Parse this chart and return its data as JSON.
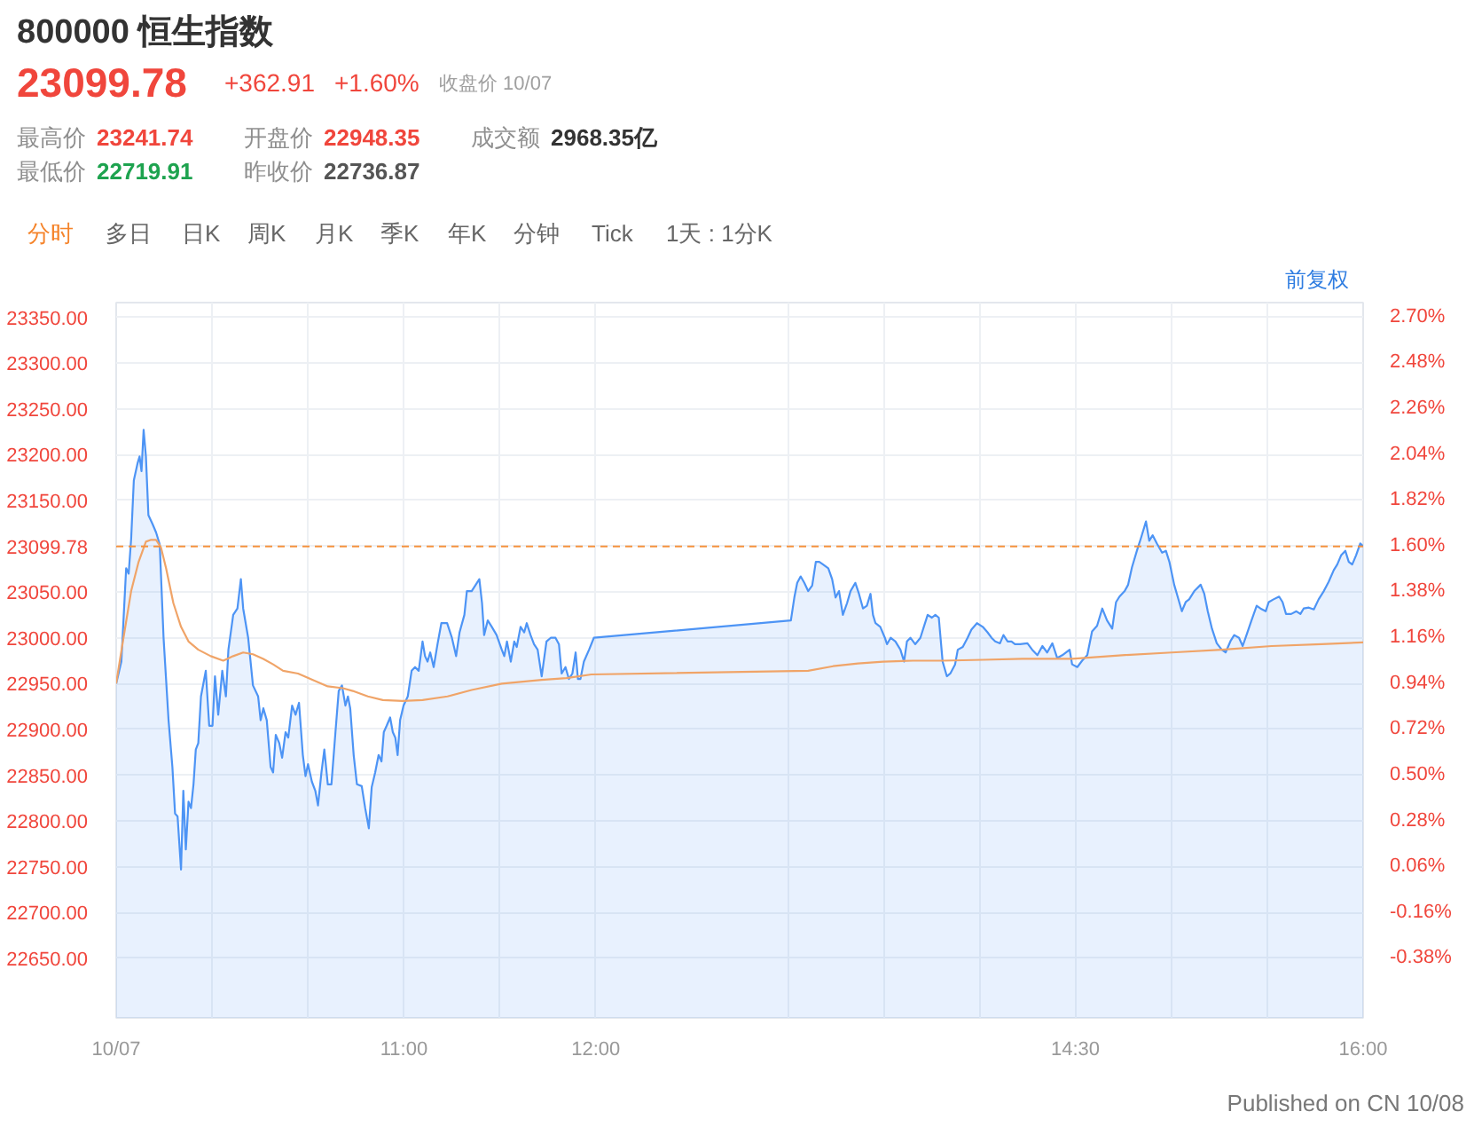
{
  "chart_data": {
    "type": "area",
    "title": "800000 恒生指数",
    "annotations": [
      "23099.78",
      "+362.91",
      "+1.60%",
      "收盘价 10/07",
      "最高价",
      "23241.74",
      "开盘价",
      "22948.35",
      "成交额",
      "2968.35亿",
      "最低价",
      "22719.91",
      "昨收价",
      "22736.87",
      "分时",
      "多日",
      "日K",
      "周K",
      "月K",
      "季K",
      "年K",
      "分钟",
      "Tick",
      "1天 : 1分K",
      "前复权",
      "Published on CN 10/08"
    ],
    "xlim": [
      9.5,
      16
    ],
    "xticks": [
      {
        "value": 9.5,
        "label": "10/07"
      },
      {
        "value": 10,
        "label": null
      },
      {
        "value": 10.5,
        "label": null
      },
      {
        "value": 11,
        "label": "11:00"
      },
      {
        "value": 11.5,
        "label": null
      },
      {
        "value": 12,
        "label": "12:00"
      },
      {
        "value": 13,
        "label": null
      },
      {
        "value": 13.5,
        "label": null
      },
      {
        "value": 14,
        "label": null
      },
      {
        "value": 14.5,
        "label": "14:30"
      },
      {
        "value": 15,
        "label": null
      },
      {
        "value": 15.5,
        "label": null
      },
      {
        "value": 16,
        "label": "16:00"
      }
    ],
    "ylim": [
      22585,
      23366
    ],
    "yticks": [
      {
        "value": 22650,
        "label": "22650.00"
      },
      {
        "value": 22700,
        "label": "22700.00"
      },
      {
        "value": 22750,
        "label": "22750.00"
      },
      {
        "value": 22800,
        "label": "22800.00"
      },
      {
        "value": 22850,
        "label": "22850.00"
      },
      {
        "value": 22900,
        "label": "22900.00"
      },
      {
        "value": 22950,
        "label": "22950.00"
      },
      {
        "value": 23000,
        "label": "23000.00"
      },
      {
        "value": 23050,
        "label": "23050.00"
      },
      23099.78,
      {
        "value": 23150,
        "label": "23150.00"
      },
      {
        "value": 23200,
        "label": "23200.00"
      },
      {
        "value": 23250,
        "label": "23250.00"
      },
      {
        "value": 23300,
        "label": "23300.00"
      },
      {
        "value": 23350,
        "label": "23350.00"
      }
    ],
    "y2lim": [
      -0.668,
      2.767
    ],
    "y2ticks": [
      {
        "value": -0.38,
        "label": "-0.38%"
      },
      {
        "value": -0.16,
        "label": "-0.16%"
      },
      {
        "value": 0.06,
        "label": "0.06%"
      },
      {
        "value": 0.28,
        "label": "0.28%"
      },
      {
        "value": 0.5,
        "label": "0.50%"
      },
      {
        "value": 0.72,
        "label": "0.72%"
      },
      {
        "value": 0.94,
        "label": "0.94%"
      },
      {
        "value": 1.16,
        "label": "1.16%"
      },
      {
        "value": 1.38,
        "label": "1.38%"
      },
      {
        "value": 1.6,
        "label": "1.60%"
      },
      {
        "value": 1.82,
        "label": "1.82%"
      },
      {
        "value": 2.04,
        "label": "2.04%"
      },
      {
        "value": 2.26,
        "label": "2.26%"
      },
      {
        "value": 2.48,
        "label": "2.48%"
      },
      {
        "value": 2.7,
        "label": "2.70%"
      }
    ],
    "grid": true,
    "ref_lines": [
      {
        "axis": "y",
        "value": 23099.78,
        "color": "#f5923e",
        "line_style": "dashed"
      }
    ],
    "series": [
      {
        "color": "#4d94f5",
        "x": [
          9.5,
          9.527,
          9.552,
          9.565,
          9.578,
          9.592,
          9.612,
          9.622,
          9.632,
          9.643,
          9.655,
          9.668,
          9.69,
          9.708,
          9.727,
          9.747,
          9.773,
          9.793,
          9.807,
          9.82,
          9.838,
          9.85,
          9.863,
          9.877,
          9.89,
          9.903,
          9.915,
          9.928,
          9.942,
          9.967,
          9.985,
          10.002,
          10.015,
          10.032,
          10.053,
          10.072,
          10.085,
          10.11,
          10.132,
          10.15,
          10.162,
          10.188,
          10.213,
          10.24,
          10.253,
          10.267,
          10.285,
          10.305,
          10.318,
          10.332,
          10.35,
          10.365,
          10.383,
          10.397,
          10.417,
          10.435,
          10.453,
          10.473,
          10.487,
          10.5,
          10.52,
          10.538,
          10.552,
          10.57,
          10.585,
          10.603,
          10.622,
          10.643,
          10.66,
          10.677,
          10.695,
          10.708,
          10.72,
          10.738,
          10.755,
          10.78,
          10.798,
          10.817,
          10.832,
          10.85,
          10.868,
          10.883,
          10.895,
          10.91,
          10.928,
          10.942,
          10.955,
          10.967,
          10.98,
          10.998,
          11.02,
          11.04,
          11.058,
          11.077,
          11.097,
          11.11,
          11.123,
          11.137,
          11.155,
          11.175,
          11.195,
          11.225,
          11.25,
          11.272,
          11.29,
          11.315,
          11.328,
          11.353,
          11.393,
          11.407,
          11.418,
          11.437,
          11.458,
          11.483,
          11.51,
          11.523,
          11.537,
          11.557,
          11.575,
          11.588,
          11.608,
          11.627,
          11.64,
          11.66,
          11.678,
          11.697,
          11.718,
          11.743,
          11.765,
          11.79,
          11.808,
          11.822,
          11.842,
          11.86,
          11.878,
          11.895,
          11.907,
          11.92,
          11.938,
          11.965,
          11.99,
          13.017,
          13.035,
          13.05,
          13.068,
          13.087,
          13.107,
          13.128,
          13.147,
          13.165,
          13.185,
          13.212,
          13.232,
          13.25,
          13.268,
          13.288,
          13.31,
          13.328,
          13.353,
          13.372,
          13.393,
          13.413,
          13.432,
          13.445,
          13.458,
          13.483,
          13.507,
          13.518,
          13.537,
          13.562,
          13.588,
          13.607,
          13.622,
          13.64,
          13.665,
          13.692,
          13.71,
          13.73,
          13.752,
          13.77,
          13.788,
          13.808,
          13.83,
          13.848,
          13.873,
          13.887,
          13.913,
          13.938,
          13.958,
          13.987,
          14.017,
          14.042,
          14.063,
          14.082,
          14.107,
          14.125,
          14.147,
          14.167,
          14.185,
          14.212,
          14.25,
          14.275,
          14.302,
          14.328,
          14.353,
          14.38,
          14.405,
          14.432,
          14.47,
          14.483,
          14.51,
          14.535,
          14.562,
          14.587,
          14.613,
          14.64,
          14.665,
          14.692,
          14.712,
          14.73,
          14.757,
          14.775,
          14.795,
          14.822,
          14.842,
          14.868,
          14.885,
          14.903,
          14.925,
          14.952,
          14.972,
          14.99,
          15.015,
          15.033,
          15.055,
          15.075,
          15.093,
          15.12,
          15.153,
          15.172,
          15.19,
          15.212,
          15.237,
          15.263,
          15.283,
          15.31,
          15.328,
          15.353,
          15.372,
          15.392,
          15.418,
          15.445,
          15.465,
          15.492,
          15.508,
          15.533,
          15.562,
          15.58,
          15.598,
          15.625,
          15.652,
          15.673,
          15.69,
          15.717,
          15.743,
          15.768,
          15.795,
          15.82,
          15.847,
          15.865,
          15.885,
          15.907,
          15.925,
          15.943,
          15.963,
          15.985,
          16
        ],
        "values": [
          22950,
          22974,
          23076,
          23070,
          23108,
          23172,
          23191,
          23198,
          23182,
          23227,
          23198,
          23134,
          23124,
          23115,
          23102,
          23000,
          22910,
          22859,
          22808,
          22805,
          22747,
          22833,
          22769,
          22821,
          22814,
          22840,
          22878,
          22885,
          22936,
          22964,
          22904,
          22904,
          22958,
          22916,
          22964,
          22936,
          22987,
          23025,
          23032,
          23064,
          23032,
          23000,
          22948,
          22936,
          22910,
          22923,
          22910,
          22859,
          22853,
          22894,
          22885,
          22869,
          22897,
          22891,
          22926,
          22916,
          22929,
          22872,
          22849,
          22862,
          22843,
          22833,
          22817,
          22853,
          22878,
          22840,
          22840,
          22897,
          22942,
          22948,
          22926,
          22936,
          22923,
          22872,
          22840,
          22838,
          22814,
          22792,
          22837,
          22853,
          22872,
          22865,
          22897,
          22904,
          22913,
          22897,
          22891,
          22872,
          22910,
          22926,
          22936,
          22964,
          22968,
          22964,
          22996,
          22980,
          22974,
          22984,
          22968,
          22993,
          23016,
          23016,
          23000,
          22980,
          23006,
          23025,
          23051,
          23051,
          23064,
          23038,
          23003,
          23019,
          23012,
          23003,
          22987,
          22980,
          22996,
          22974,
          22996,
          22990,
          23012,
          23006,
          23016,
          23003,
          22993,
          22987,
          22958,
          22996,
          23000,
          23000,
          22993,
          22961,
          22968,
          22955,
          22961,
          22984,
          22955,
          22955,
          22974,
          22987,
          23000,
          23019,
          23044,
          23060,
          23067,
          23060,
          23051,
          23057,
          23083,
          23083,
          23080,
          23076,
          23064,
          23044,
          23051,
          23025,
          23038,
          23051,
          23060,
          23048,
          23032,
          23035,
          23048,
          23025,
          23016,
          23012,
          23000,
          22993,
          23000,
          22996,
          22987,
          22974,
          22996,
          23000,
          22993,
          23000,
          23012,
          23025,
          23022,
          23025,
          23022,
          22974,
          22958,
          22961,
          22971,
          22987,
          22990,
          23000,
          23009,
          23016,
          23012,
          23006,
          23000,
          22996,
          22994,
          23003,
          22996,
          22996,
          22993,
          22993,
          22994,
          22987,
          22981,
          22991,
          22984,
          22994,
          22978,
          22981,
          22987,
          22971,
          22968,
          22975,
          22981,
          23007,
          23013,
          23032,
          23019,
          23010,
          23039,
          23045,
          23051,
          23058,
          23077,
          23096,
          23109,
          23127,
          23106,
          23112,
          23103,
          23093,
          23095,
          23083,
          23058,
          23045,
          23029,
          23039,
          23042,
          23051,
          23058,
          23048,
          23029,
          23010,
          22994,
          22987,
          22984,
          22997,
          23003,
          23000,
          22991,
          23003,
          23019,
          23035,
          23032,
          23029,
          23039,
          23042,
          23045,
          23039,
          23026,
          23026,
          23029,
          23026,
          23032,
          23033,
          23031,
          23042,
          23051,
          23061,
          23074,
          23080,
          23090,
          23095,
          23083,
          23080,
          23090,
          23103,
          23100
        ]
      },
      {
        "type": "line",
        "color": "#f0a468",
        "x": [
          9.5,
          9.538,
          9.578,
          9.617,
          9.655,
          9.682,
          9.708,
          9.733,
          9.76,
          9.798,
          9.838,
          9.877,
          9.928,
          9.993,
          10.058,
          10.11,
          10.162,
          10.213,
          10.267,
          10.318,
          10.37,
          10.448,
          10.525,
          10.603,
          10.682,
          10.733,
          10.812,
          10.89,
          10.993,
          11.097,
          11.227,
          11.353,
          11.51,
          11.718,
          11.847,
          11.977,
          13.107,
          13.237,
          13.367,
          13.497,
          13.653,
          13.808,
          14.017,
          14.223,
          14.483,
          14.743,
          15.003,
          15.263,
          15.523,
          15.783,
          16
        ],
        "values": [
          22950,
          23000,
          23051,
          23083,
          23105,
          23107,
          23107,
          23099,
          23076,
          23038,
          23012,
          22996,
          22987,
          22980,
          22975,
          22980,
          22984,
          22982,
          22977,
          22971,
          22964,
          22961,
          22954,
          22947,
          22945,
          22942,
          22936,
          22932,
          22931,
          22932,
          22936,
          22943,
          22950,
          22954,
          22956,
          22960,
          22964,
          22969,
          22972,
          22974,
          22975,
          22975,
          22976,
          22977,
          22977,
          22981,
          22984,
          22987,
          22991,
          22993,
          22995
        ]
      }
    ]
  }
}
